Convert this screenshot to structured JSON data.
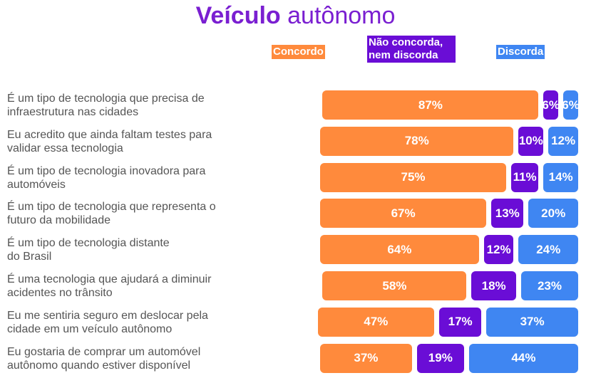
{
  "title": {
    "bold": "Veículo",
    "rest": "autônomo"
  },
  "colors": {
    "concordo": "#ff8a3c",
    "neutro": "#6a0dd6",
    "discorda": "#3f86f2",
    "title": "#7a1fd1"
  },
  "legend": [
    {
      "label": "Concordo",
      "color": "#ff8a3c"
    },
    {
      "label": "Não concorda, nem discorda",
      "color": "#6a0dd6"
    },
    {
      "label": "Discorda",
      "color": "#3f86f2"
    }
  ],
  "chart_data": {
    "type": "bar",
    "orientation": "horizontal",
    "stacked": true,
    "title": "Veículo autônomo",
    "categories": [
      "É um tipo de tecnologia que precisa de infraestrutura nas cidades",
      "Eu acredito que ainda faltam testes para validar essa tecnologia",
      "É um tipo de tecnologia inovadora para automóveis",
      "É um tipo de tecnologia que representa o futuro da mobilidade",
      "É um tipo de tecnologia distante do Brasil",
      "É uma tecnologia que ajudará a diminuir acidentes no trânsito",
      "Eu me sentiria seguro em deslocar pela cidade em um veículo autônomo",
      "Eu gostaria de comprar um automóvel autônomo quando estiver disponível"
    ],
    "label_lines": [
      [
        "É um tipo de tecnologia que precisa de",
        "infraestrutura nas cidades"
      ],
      [
        "Eu acredito que ainda faltam testes para",
        "validar essa tecnologia"
      ],
      [
        " É um tipo de tecnologia inovadora para",
        "automóveis"
      ],
      [
        "É um tipo de tecnologia que representa o",
        "futuro da mobilidade"
      ],
      [
        "É um tipo de tecnologia distante",
        "do Brasil"
      ],
      [
        "É uma tecnologia que ajudará a diminuir",
        "acidentes no trânsito"
      ],
      [
        "Eu me sentiria seguro em deslocar pela",
        "cidade em um veículo autônomo"
      ],
      [
        "Eu gostaria de comprar um automóvel",
        "autônomo quando estiver disponível"
      ]
    ],
    "series": [
      {
        "name": "Concordo",
        "values": [
          87,
          78,
          75,
          67,
          64,
          58,
          47,
          37
        ]
      },
      {
        "name": "Não concorda, nem discorda",
        "values": [
          6,
          10,
          11,
          13,
          12,
          18,
          17,
          19
        ]
      },
      {
        "name": "Discorda",
        "values": [
          6,
          12,
          14,
          20,
          24,
          23,
          37,
          44
        ]
      }
    ],
    "value_labels": [
      [
        "87%",
        "6%",
        "6%"
      ],
      [
        "78%",
        "10%",
        "12%"
      ],
      [
        "75%",
        "11%",
        "14%"
      ],
      [
        "67%",
        "13%",
        "20%"
      ],
      [
        "64%",
        "12%",
        "24%"
      ],
      [
        "58%",
        "18%",
        "23%"
      ],
      [
        "47%",
        "17%",
        "37%"
      ],
      [
        "37%",
        "19%",
        "44%"
      ]
    ]
  }
}
